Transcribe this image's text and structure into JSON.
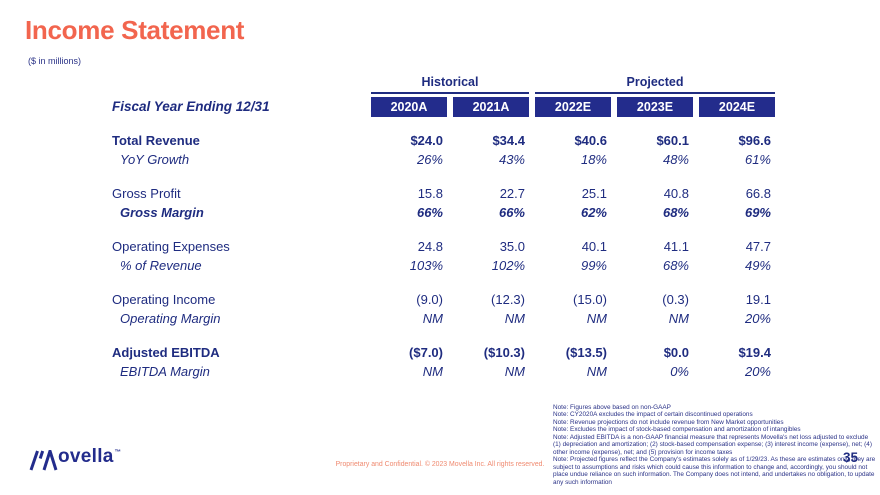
{
  "slide": {
    "title": "Income Statement",
    "units": "($ in millions)",
    "page_number": "35",
    "footer": "Proprietary and Confidential. © 2023 Movella Inc. All rights reserved.",
    "logo": {
      "brand": "Movella",
      "text": "ovella",
      "tm": "™"
    }
  },
  "table": {
    "fiscal_label": "Fiscal Year Ending 12/31",
    "groups": [
      {
        "label": "Historical",
        "span": 2
      },
      {
        "label": "Projected",
        "span": 3
      }
    ],
    "columns": [
      "2020A",
      "2021A",
      "2022E",
      "2023E",
      "2024E"
    ],
    "rows": [
      {
        "label": "Total Revenue",
        "style": "bold",
        "sub": false,
        "group_start": false,
        "values": [
          "$24.0",
          "$34.4",
          "$40.6",
          "$60.1",
          "$96.6"
        ]
      },
      {
        "label": "YoY Growth",
        "style": "italic",
        "sub": true,
        "group_start": false,
        "values": [
          "26%",
          "43%",
          "18%",
          "48%",
          "61%"
        ]
      },
      {
        "label": "Gross Profit",
        "style": "regular",
        "sub": false,
        "group_start": true,
        "values": [
          "15.8",
          "22.7",
          "25.1",
          "40.8",
          "66.8"
        ]
      },
      {
        "label": "Gross Margin",
        "style": "bold-italic",
        "sub": true,
        "group_start": false,
        "values": [
          "66%",
          "66%",
          "62%",
          "68%",
          "69%"
        ]
      },
      {
        "label": "Operating Expenses",
        "style": "regular",
        "sub": false,
        "group_start": true,
        "values": [
          "24.8",
          "35.0",
          "40.1",
          "41.1",
          "47.7"
        ]
      },
      {
        "label": "% of Revenue",
        "style": "italic",
        "sub": true,
        "group_start": false,
        "values": [
          "103%",
          "102%",
          "99%",
          "68%",
          "49%"
        ]
      },
      {
        "label": "Operating Income",
        "style": "regular",
        "sub": false,
        "group_start": true,
        "values": [
          "(9.0)",
          "(12.3)",
          "(15.0)",
          "(0.3)",
          "19.1"
        ]
      },
      {
        "label": "Operating Margin",
        "style": "italic",
        "sub": true,
        "group_start": false,
        "values": [
          "NM",
          "NM",
          "NM",
          "NM",
          "20%"
        ]
      },
      {
        "label": "Adjusted EBITDA",
        "style": "bold",
        "sub": false,
        "group_start": true,
        "values": [
          "($7.0)",
          "($10.3)",
          "($13.5)",
          "$0.0",
          "$19.4"
        ]
      },
      {
        "label": "EBITDA Margin",
        "style": "italic",
        "sub": true,
        "group_start": false,
        "values": [
          "NM",
          "NM",
          "NM",
          "0%",
          "20%"
        ]
      }
    ]
  },
  "notes": [
    "Note: Figures above based on non-GAAP",
    "Note: CY2020A excludes the impact of certain discontinued operations",
    "Note: Revenue projections do not include revenue from New Market opportunities",
    "Note: Excludes the impact of stock-based compensation and amortization of intangibles",
    "Note: Adjusted EBITDA is a non-GAAP financial measure that represents Movella's net loss adjusted to exclude (1) depreciation and amortization; (2) stock-based compensation expense; (3) interest income (expense), net; (4) other income (expense), net; and (5) provision for income taxes",
    "Note: Projected figures reflect the Company's estimates solely as of 1/29/23. As these are estimates only, they are subject to assumptions and risks which could cause this information to change and, accordingly, you should not place undue reliance on such information. The Company does not intend, and undertakes no obligation, to update any such information"
  ],
  "colors": {
    "accent_coral": "#F2654E",
    "navy_text": "#1F2C80",
    "navy_box": "#232C8C",
    "footer_salmon": "#EF8A70"
  }
}
